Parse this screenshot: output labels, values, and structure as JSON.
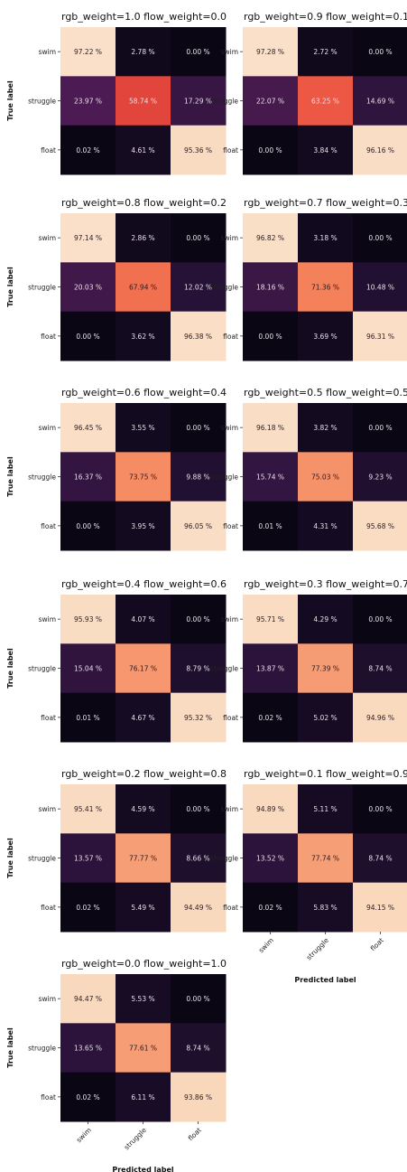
{
  "chart_data": {
    "type": "heatmap",
    "rows": [
      "swim",
      "struggle",
      "float"
    ],
    "cols": [
      "swim",
      "struggle",
      "float"
    ],
    "ylabel": "True label",
    "xlabel": "Predicted label",
    "value_format": "%",
    "vmin": 0,
    "vmax": 100,
    "panels": [
      {
        "title": "rgb_weight=1.0   flow_weight=0.0",
        "cells": [
          [
            "97.22 %",
            "2.78 %",
            "0.00 %"
          ],
          [
            "23.97 %",
            "58.74 %",
            "17.29 %"
          ],
          [
            "0.02 %",
            "4.61 %",
            "95.36 %"
          ]
        ],
        "values": [
          [
            97.22,
            2.78,
            0.0
          ],
          [
            23.97,
            58.74,
            17.29
          ],
          [
            0.02,
            4.61,
            95.36
          ]
        ]
      },
      {
        "title": "rgb_weight=0.9   flow_weight=0.1",
        "cells": [
          [
            "97.28 %",
            "2.72 %",
            "0.00 %"
          ],
          [
            "22.07 %",
            "63.25 %",
            "14.69 %"
          ],
          [
            "0.00 %",
            "3.84 %",
            "96.16 %"
          ]
        ],
        "values": [
          [
            97.28,
            2.72,
            0.0
          ],
          [
            22.07,
            63.25,
            14.69
          ],
          [
            0.0,
            3.84,
            96.16
          ]
        ]
      },
      {
        "title": "rgb_weight=0.8   flow_weight=0.2",
        "cells": [
          [
            "97.14 %",
            "2.86 %",
            "0.00 %"
          ],
          [
            "20.03 %",
            "67.94 %",
            "12.02 %"
          ],
          [
            "0.00 %",
            "3.62 %",
            "96.38 %"
          ]
        ],
        "values": [
          [
            97.14,
            2.86,
            0.0
          ],
          [
            20.03,
            67.94,
            12.02
          ],
          [
            0.0,
            3.62,
            96.38
          ]
        ]
      },
      {
        "title": "rgb_weight=0.7   flow_weight=0.3",
        "cells": [
          [
            "96.82 %",
            "3.18 %",
            "0.00 %"
          ],
          [
            "18.16 %",
            "71.36 %",
            "10.48 %"
          ],
          [
            "0.00 %",
            "3.69 %",
            "96.31 %"
          ]
        ],
        "values": [
          [
            96.82,
            3.18,
            0.0
          ],
          [
            18.16,
            71.36,
            10.48
          ],
          [
            0.0,
            3.69,
            96.31
          ]
        ]
      },
      {
        "title": "rgb_weight=0.6   flow_weight=0.4",
        "cells": [
          [
            "96.45 %",
            "3.55 %",
            "0.00 %"
          ],
          [
            "16.37 %",
            "73.75 %",
            "9.88 %"
          ],
          [
            "0.00 %",
            "3.95 %",
            "96.05 %"
          ]
        ],
        "values": [
          [
            96.45,
            3.55,
            0.0
          ],
          [
            16.37,
            73.75,
            9.88
          ],
          [
            0.0,
            3.95,
            96.05
          ]
        ]
      },
      {
        "title": "rgb_weight=0.5   flow_weight=0.5",
        "cells": [
          [
            "96.18 %",
            "3.82 %",
            "0.00 %"
          ],
          [
            "15.74 %",
            "75.03 %",
            "9.23 %"
          ],
          [
            "0.01 %",
            "4.31 %",
            "95.68 %"
          ]
        ],
        "values": [
          [
            96.18,
            3.82,
            0.0
          ],
          [
            15.74,
            75.03,
            9.23
          ],
          [
            0.01,
            4.31,
            95.68
          ]
        ]
      },
      {
        "title": "rgb_weight=0.4   flow_weight=0.6",
        "cells": [
          [
            "95.93 %",
            "4.07 %",
            "0.00 %"
          ],
          [
            "15.04 %",
            "76.17 %",
            "8.79 %"
          ],
          [
            "0.01 %",
            "4.67 %",
            "95.32 %"
          ]
        ],
        "values": [
          [
            95.93,
            4.07,
            0.0
          ],
          [
            15.04,
            76.17,
            8.79
          ],
          [
            0.01,
            4.67,
            95.32
          ]
        ]
      },
      {
        "title": "rgb_weight=0.3   flow_weight=0.7",
        "cells": [
          [
            "95.71 %",
            "4.29 %",
            "0.00 %"
          ],
          [
            "13.87 %",
            "77.39 %",
            "8.74 %"
          ],
          [
            "0.02 %",
            "5.02 %",
            "94.96 %"
          ]
        ],
        "values": [
          [
            95.71,
            4.29,
            0.0
          ],
          [
            13.87,
            77.39,
            8.74
          ],
          [
            0.02,
            5.02,
            94.96
          ]
        ]
      },
      {
        "title": "rgb_weight=0.2   flow_weight=0.8",
        "cells": [
          [
            "95.41 %",
            "4.59 %",
            "0.00 %"
          ],
          [
            "13.57 %",
            "77.77 %",
            "8.66 %"
          ],
          [
            "0.02 %",
            "5.49 %",
            "94.49 %"
          ]
        ],
        "values": [
          [
            95.41,
            4.59,
            0.0
          ],
          [
            13.57,
            77.77,
            8.66
          ],
          [
            0.02,
            5.49,
            94.49
          ]
        ]
      },
      {
        "title": "rgb_weight=0.1   flow_weight=0.9",
        "cells": [
          [
            "94.89 %",
            "5.11 %",
            "0.00 %"
          ],
          [
            "13.52 %",
            "77.74 %",
            "8.74 %"
          ],
          [
            "0.02 %",
            "5.83 %",
            "94.15 %"
          ]
        ],
        "values": [
          [
            94.89,
            5.11,
            0.0
          ],
          [
            13.52,
            77.74,
            8.74
          ],
          [
            0.02,
            5.83,
            94.15
          ]
        ]
      },
      {
        "title": "rgb_weight=0.0   flow_weight=1.0",
        "cells": [
          [
            "94.47 %",
            "5.53 %",
            "0.00 %"
          ],
          [
            "13.65 %",
            "77.61 %",
            "8.74 %"
          ],
          [
            "0.02 %",
            "6.11 %",
            "93.86 %"
          ]
        ],
        "values": [
          [
            94.47,
            5.53,
            0.0
          ],
          [
            13.65,
            77.61,
            8.74
          ],
          [
            0.02,
            6.11,
            93.86
          ]
        ]
      }
    ]
  }
}
